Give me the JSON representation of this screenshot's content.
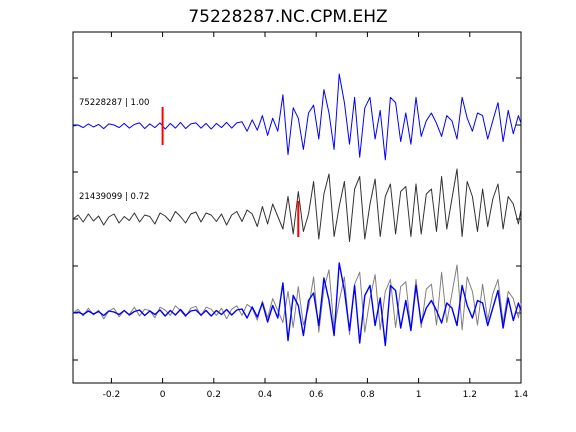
{
  "chart_data": {
    "type": "line",
    "title": "75228287.NC.CPM.EHZ",
    "xlabel": "",
    "ylabel": "",
    "xlim": [
      -0.35,
      1.4
    ],
    "xticks": [
      -0.2,
      0,
      0.2,
      0.4,
      0.6,
      0.8,
      1,
      1.2,
      1.4
    ],
    "xtick_labels": [
      "-0.2",
      "0",
      "0.2",
      "0.4",
      "0.6",
      "0.8",
      "1",
      "1.2",
      "1.4"
    ],
    "grid": false,
    "colors": {
      "template": "#0000ff",
      "match": "#333333",
      "overlay_match": "#808080",
      "pick": "#ff0000"
    },
    "series": [
      {
        "label": "75228287 | 1.00",
        "role": "template",
        "pick_time": 0.0,
        "x": [
          -0.35,
          -0.33,
          -0.31,
          -0.29,
          -0.27,
          -0.25,
          -0.23,
          -0.21,
          -0.19,
          -0.17,
          -0.15,
          -0.13,
          -0.11,
          -0.09,
          -0.07,
          -0.05,
          -0.03,
          -0.01,
          0.01,
          0.03,
          0.05,
          0.07,
          0.09,
          0.11,
          0.13,
          0.15,
          0.17,
          0.19,
          0.21,
          0.23,
          0.25,
          0.27,
          0.29,
          0.31,
          0.33,
          0.35,
          0.37,
          0.39,
          0.41,
          0.43,
          0.45,
          0.47,
          0.49,
          0.51,
          0.53,
          0.55,
          0.57,
          0.59,
          0.61,
          0.63,
          0.65,
          0.67,
          0.69,
          0.71,
          0.73,
          0.75,
          0.77,
          0.79,
          0.81,
          0.83,
          0.85,
          0.87,
          0.89,
          0.91,
          0.93,
          0.95,
          0.97,
          0.99,
          1.01,
          1.03,
          1.05,
          1.07,
          1.09,
          1.11,
          1.13,
          1.15,
          1.17,
          1.19,
          1.21,
          1.23,
          1.25,
          1.27,
          1.29,
          1.31,
          1.33,
          1.35,
          1.37,
          1.39,
          1.4
        ],
        "y": [
          0,
          0.02,
          -0.03,
          0.04,
          -0.02,
          0.03,
          -0.05,
          0.04,
          0.02,
          -0.03,
          0.05,
          -0.04,
          0.03,
          0.06,
          -0.05,
          0.04,
          -0.03,
          0.06,
          -0.06,
          0.05,
          -0.04,
          0.07,
          -0.05,
          0.04,
          0.06,
          -0.04,
          0.05,
          -0.06,
          0.05,
          -0.03,
          0.07,
          -0.04,
          0.06,
          0.08,
          -0.1,
          0.12,
          -0.08,
          0.2,
          -0.18,
          0.15,
          -0.1,
          0.6,
          -0.55,
          0.35,
          0.15,
          -0.45,
          0.25,
          0.4,
          -0.25,
          0.7,
          0.25,
          -0.45,
          1.0,
          0.45,
          -0.35,
          0.55,
          -0.6,
          0.35,
          0.55,
          -0.25,
          0.3,
          -0.65,
          0.55,
          0.45,
          -0.3,
          0.25,
          -0.35,
          0.55,
          -0.2,
          0.1,
          0.25,
          0.05,
          -0.2,
          0.2,
          0.1,
          -0.25,
          0.55,
          0.15,
          -0.1,
          0.25,
          0.2,
          -0.25,
          0.1,
          0.45,
          -0.3,
          0.3,
          -0.15,
          0.2,
          0.05
        ]
      },
      {
        "label": "21439099 | 0.72",
        "role": "match",
        "pick_time": 0.53,
        "x": [
          -0.35,
          -0.33,
          -0.31,
          -0.29,
          -0.27,
          -0.25,
          -0.23,
          -0.21,
          -0.19,
          -0.17,
          -0.15,
          -0.13,
          -0.11,
          -0.09,
          -0.07,
          -0.05,
          -0.03,
          -0.01,
          0.01,
          0.03,
          0.05,
          0.07,
          0.09,
          0.11,
          0.13,
          0.15,
          0.17,
          0.19,
          0.21,
          0.23,
          0.25,
          0.27,
          0.29,
          0.31,
          0.33,
          0.35,
          0.37,
          0.39,
          0.41,
          0.43,
          0.45,
          0.47,
          0.49,
          0.51,
          0.53,
          0.55,
          0.57,
          0.59,
          0.61,
          0.63,
          0.65,
          0.67,
          0.69,
          0.71,
          0.73,
          0.75,
          0.77,
          0.79,
          0.81,
          0.83,
          0.85,
          0.87,
          0.89,
          0.91,
          0.93,
          0.95,
          0.97,
          0.99,
          1.01,
          1.03,
          1.05,
          1.07,
          1.09,
          1.11,
          1.13,
          1.15,
          1.17,
          1.19,
          1.21,
          1.23,
          1.25,
          1.27,
          1.29,
          1.31,
          1.33,
          1.35,
          1.37,
          1.39,
          1.4
        ],
        "y": [
          0,
          0.08,
          -0.06,
          0.1,
          -0.04,
          0.06,
          -0.12,
          0.04,
          0.1,
          -0.08,
          0.05,
          -0.03,
          0.12,
          -0.06,
          0.08,
          0.05,
          -0.1,
          0.12,
          0.06,
          -0.05,
          0.15,
          0.05,
          -0.08,
          0.1,
          0.14,
          -0.06,
          0.12,
          0.08,
          -0.05,
          0.1,
          -0.12,
          0.08,
          0.15,
          -0.05,
          0.18,
          0.1,
          -0.15,
          0.25,
          -0.1,
          0.3,
          0.05,
          -0.2,
          0.45,
          -0.3,
          0.55,
          -0.25,
          0.1,
          0.75,
          -0.4,
          0.5,
          0.9,
          -0.35,
          0.25,
          0.75,
          -0.45,
          0.6,
          0.85,
          -0.4,
          0.3,
          0.8,
          -0.35,
          0.45,
          0.7,
          -0.3,
          0.55,
          0.65,
          -0.35,
          0.7,
          -0.3,
          0.5,
          0.6,
          -0.25,
          0.85,
          -0.2,
          0.4,
          1.0,
          -0.35,
          0.75,
          0.45,
          -0.25,
          0.6,
          -0.15,
          0.4,
          0.7,
          -0.2,
          0.45,
          0.3,
          -0.1,
          0.2
        ]
      }
    ],
    "overlay": {
      "description_of_traces": [
        "template",
        "match"
      ]
    }
  }
}
